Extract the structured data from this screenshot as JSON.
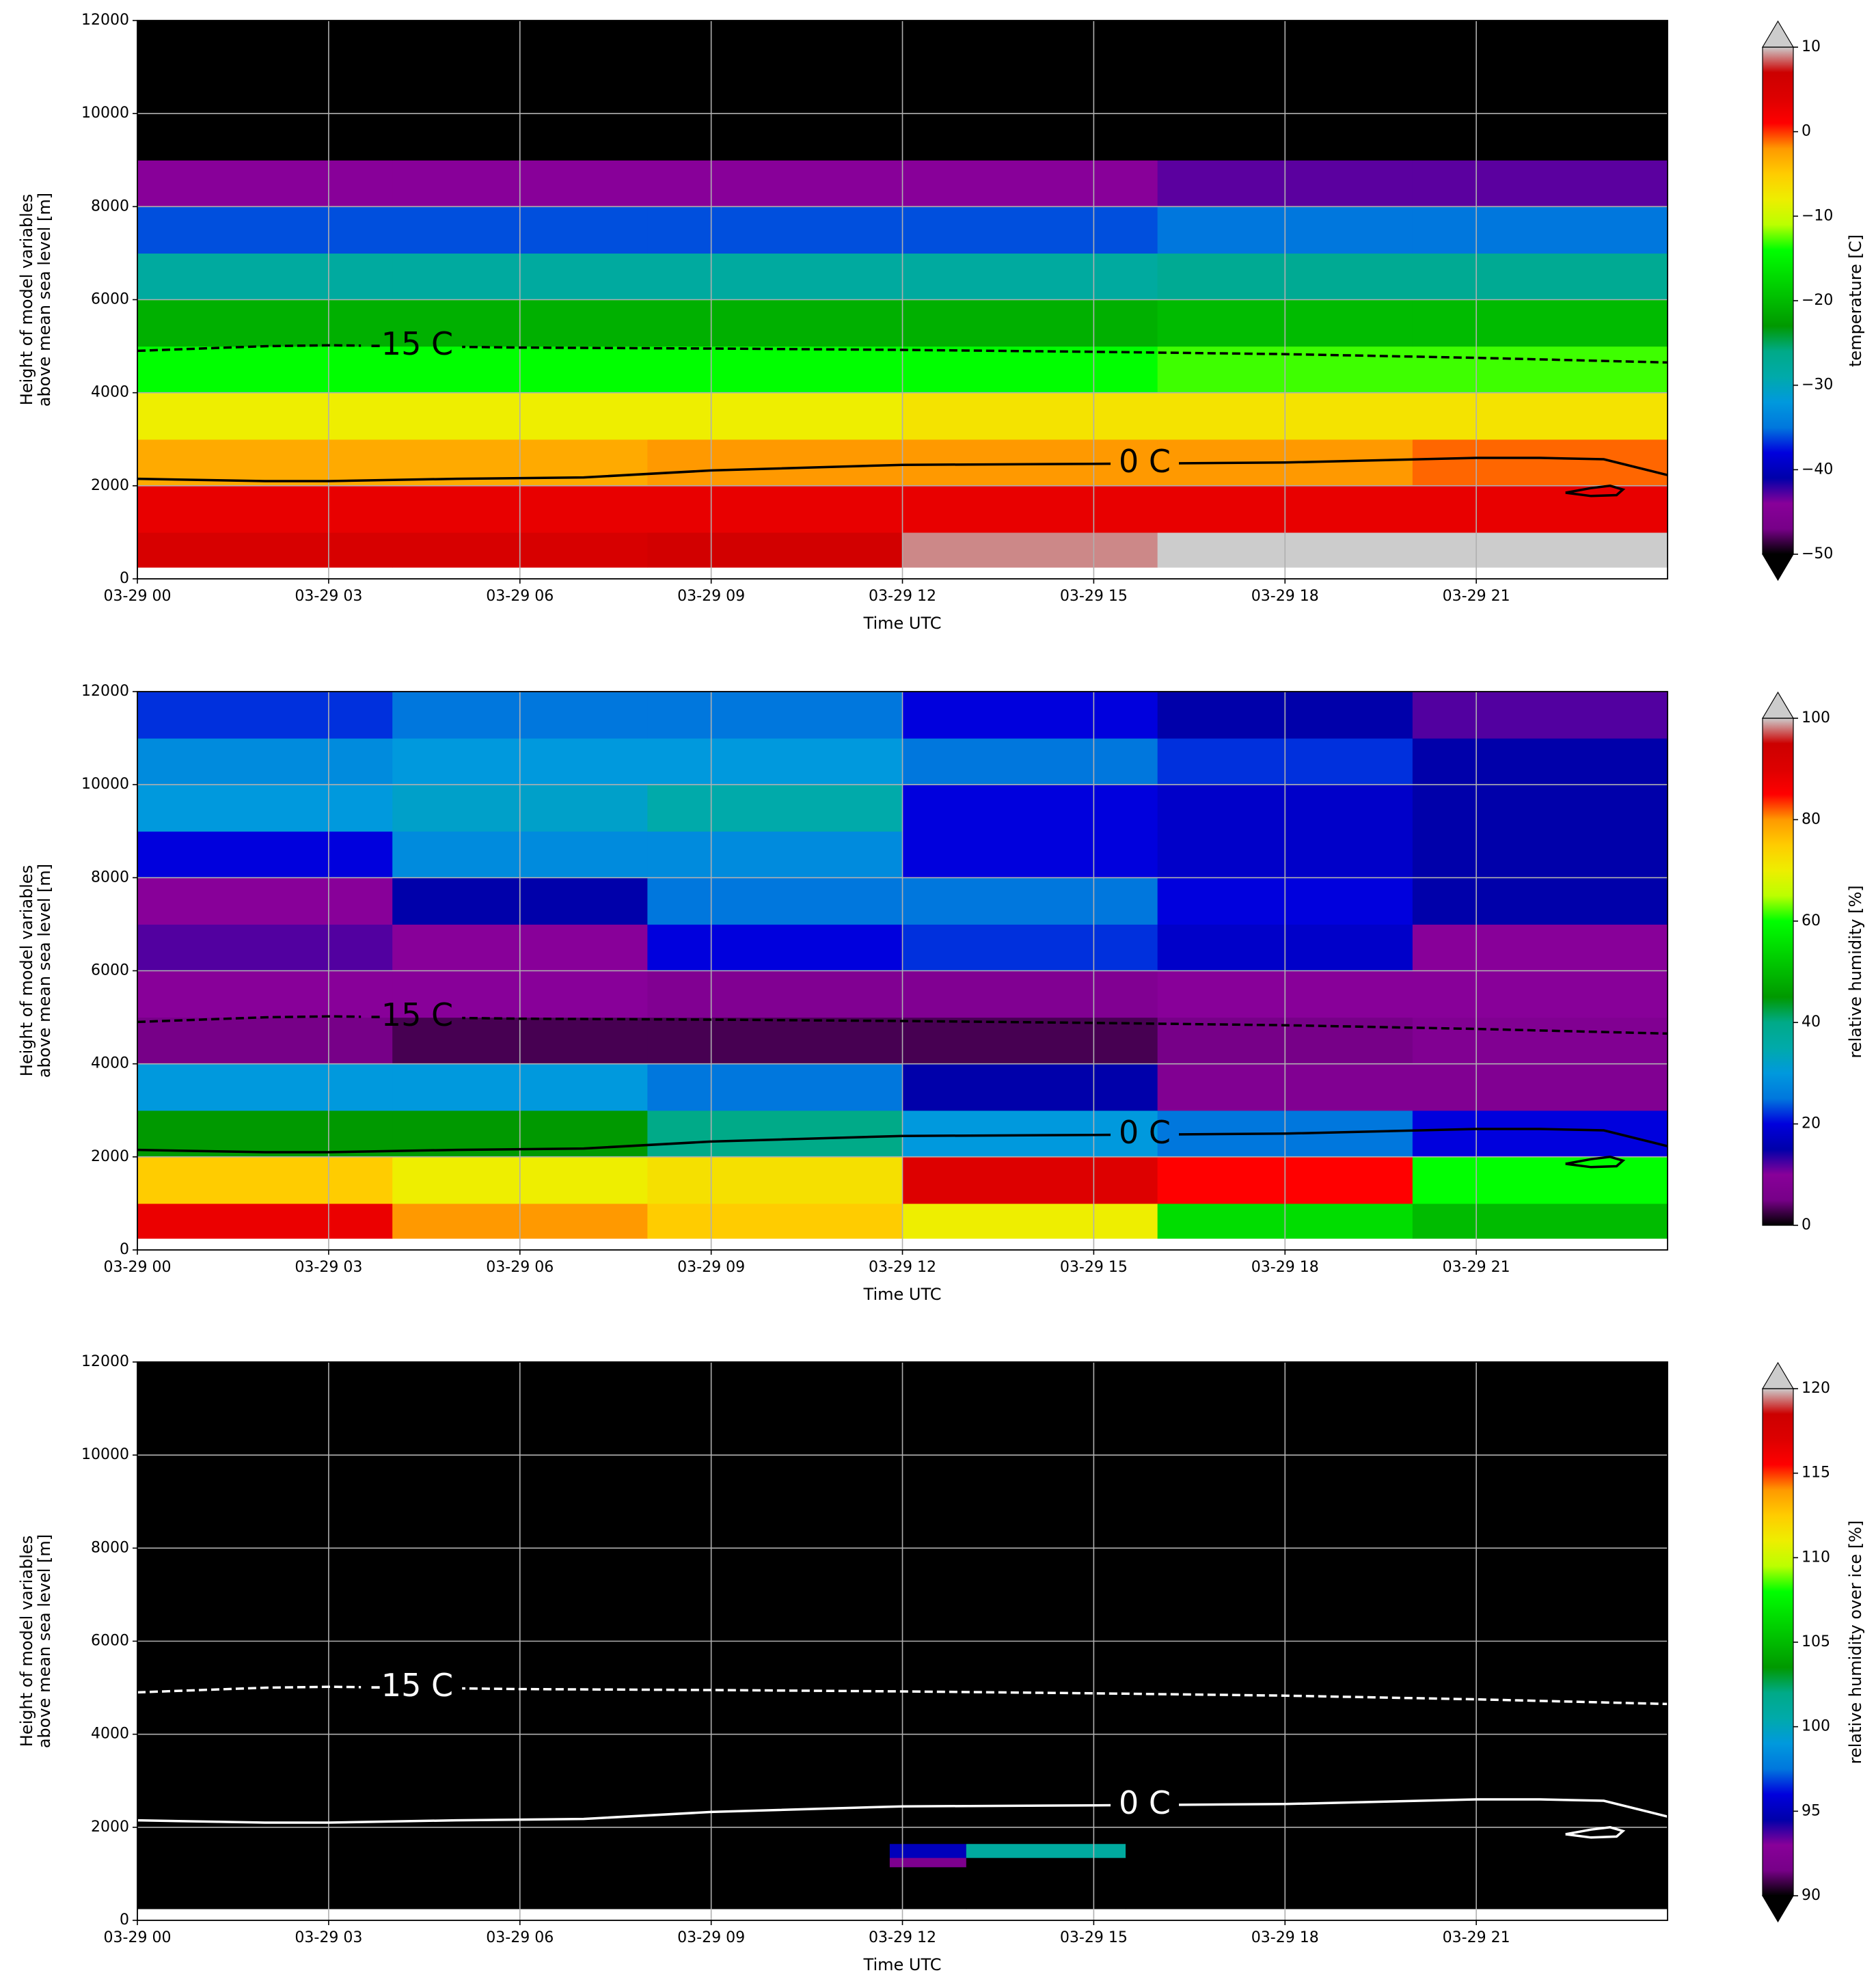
{
  "chart_data": [
    {
      "type": "heatmap",
      "colormap": "nipy_spectral",
      "xlabel": "Time UTC",
      "ylabel": [
        "Height of model variables",
        "above mean sea level [m]"
      ],
      "xlim": [
        0,
        24
      ],
      "xticks": [
        {
          "value": 0,
          "label": "03-29 00"
        },
        {
          "value": 3,
          "label": "03-29 03"
        },
        {
          "value": 6,
          "label": "03-29 06"
        },
        {
          "value": 9,
          "label": "03-29 09"
        },
        {
          "value": 12,
          "label": "03-29 12"
        },
        {
          "value": 15,
          "label": "03-29 15"
        },
        {
          "value": 18,
          "label": "03-29 18"
        },
        {
          "value": 21,
          "label": "03-29 21"
        }
      ],
      "ylim": [
        0,
        12000
      ],
      "yticks": [
        0,
        2000,
        4000,
        6000,
        8000,
        10000,
        12000
      ],
      "grid": true,
      "x_edges": [
        0,
        4,
        8,
        12,
        16,
        20,
        24
      ],
      "y_edges": [
        250,
        1000,
        2000,
        3000,
        4000,
        5000,
        6000,
        7000,
        8000,
        9000,
        10000,
        11000,
        12000
      ],
      "z": [
        [
          5,
          5,
          6,
          9,
          10,
          10
        ],
        [
          3,
          3,
          3,
          3,
          3,
          3
        ],
        [
          -3,
          -3,
          -2,
          -2,
          -2,
          -1
        ],
        [
          -8,
          -8,
          -8,
          -7,
          -7,
          -7
        ],
        [
          -14,
          -14,
          -14,
          -14,
          -13,
          -13
        ],
        [
          -21,
          -21,
          -21,
          -21,
          -20,
          -20
        ],
        [
          -28,
          -28,
          -28,
          -28,
          -27,
          -27
        ],
        [
          -36,
          -36,
          -36,
          -36,
          -35,
          -35
        ],
        [
          -44,
          -44,
          -44,
          -44,
          -43,
          -43
        ],
        [
          -52,
          -52,
          -52,
          -52,
          -52,
          -52
        ],
        [
          -55,
          -55,
          -55,
          -55,
          -55,
          -55
        ],
        [
          -57,
          -57,
          -57,
          -57,
          -57,
          -57
        ]
      ],
      "cbar_label": "temperature [C]",
      "cbar_lim": [
        -50,
        10
      ],
      "cbar_extend": "both",
      "cbar_ticks": [
        {
          "value": -50,
          "label": "−50"
        },
        {
          "value": -40,
          "label": "−40"
        },
        {
          "value": -30,
          "label": "−30"
        },
        {
          "value": -20,
          "label": "−20"
        },
        {
          "value": -10,
          "label": "−10"
        },
        0,
        10
      ],
      "contour_color": "#000000",
      "contours": [
        {
          "label": "-15 C",
          "dashed": true,
          "x": [
            0,
            2,
            3,
            6,
            9,
            12,
            15,
            18,
            21,
            24
          ],
          "y": [
            4900,
            5000,
            5020,
            4970,
            4950,
            4920,
            4880,
            4830,
            4750,
            4650
          ]
        },
        {
          "label": "0 C",
          "dashed": false,
          "x": [
            0,
            2,
            3,
            5,
            7,
            9,
            12,
            15,
            18,
            21,
            22,
            23,
            24,
            null,
            22.4,
            22.8,
            23.1,
            23.3,
            23.2,
            22.8,
            22.4
          ],
          "y": [
            2150,
            2100,
            2100,
            2150,
            2180,
            2330,
            2450,
            2470,
            2500,
            2600,
            2600,
            2570,
            2230,
            null,
            1850,
            1950,
            2000,
            1920,
            1800,
            1780,
            1850
          ]
        }
      ]
    },
    {
      "type": "heatmap",
      "colormap": "nipy_spectral",
      "xlabel": "Time UTC",
      "ylabel": [
        "Height of model variables",
        "above mean sea level [m]"
      ],
      "xlim": [
        0,
        24
      ],
      "xticks": [
        {
          "value": 0,
          "label": "03-29 00"
        },
        {
          "value": 3,
          "label": "03-29 03"
        },
        {
          "value": 6,
          "label": "03-29 06"
        },
        {
          "value": 9,
          "label": "03-29 09"
        },
        {
          "value": 12,
          "label": "03-29 12"
        },
        {
          "value": 15,
          "label": "03-29 15"
        },
        {
          "value": 18,
          "label": "03-29 18"
        },
        {
          "value": 21,
          "label": "03-29 21"
        }
      ],
      "ylim": [
        0,
        12000
      ],
      "yticks": [
        0,
        2000,
        4000,
        6000,
        8000,
        10000,
        12000
      ],
      "grid": true,
      "x_edges": [
        0,
        4,
        8,
        12,
        16,
        20,
        24
      ],
      "y_edges": [
        250,
        1000,
        2000,
        3000,
        4000,
        5000,
        6000,
        7000,
        8000,
        9000,
        10000,
        11000,
        12000
      ],
      "z": [
        [
          88,
          80,
          75,
          70,
          55,
          50
        ],
        [
          75,
          70,
          72,
          90,
          85,
          60
        ],
        [
          45,
          45,
          40,
          30,
          25,
          20
        ],
        [
          30,
          30,
          25,
          15,
          8,
          8
        ],
        [
          5,
          3,
          3,
          3,
          5,
          8
        ],
        [
          10,
          10,
          8,
          8,
          10,
          10
        ],
        [
          12,
          10,
          20,
          22,
          18,
          10
        ],
        [
          10,
          15,
          25,
          25,
          20,
          15
        ],
        [
          20,
          28,
          28,
          20,
          18,
          15
        ],
        [
          30,
          32,
          35,
          20,
          18,
          15
        ],
        [
          28,
          30,
          30,
          25,
          22,
          15
        ],
        [
          22,
          25,
          25,
          20,
          15,
          12
        ]
      ],
      "cbar_label": "relative humidity [%]",
      "cbar_lim": [
        0,
        100
      ],
      "cbar_extend": "max",
      "cbar_ticks": [
        0,
        20,
        40,
        60,
        80,
        100
      ],
      "contour_color": "#000000",
      "contours": [
        {
          "label": "-15 C",
          "dashed": true,
          "x": [
            0,
            2,
            3,
            6,
            9,
            12,
            15,
            18,
            21,
            24
          ],
          "y": [
            4900,
            5000,
            5020,
            4970,
            4950,
            4920,
            4880,
            4830,
            4750,
            4650
          ]
        },
        {
          "label": "0 C",
          "dashed": false,
          "x": [
            0,
            2,
            3,
            5,
            7,
            9,
            12,
            15,
            18,
            21,
            22,
            23,
            24,
            null,
            22.4,
            22.8,
            23.1,
            23.3,
            23.2,
            22.8,
            22.4
          ],
          "y": [
            2150,
            2100,
            2100,
            2150,
            2180,
            2330,
            2450,
            2470,
            2500,
            2600,
            2600,
            2570,
            2230,
            null,
            1850,
            1950,
            2000,
            1920,
            1800,
            1780,
            1850
          ]
        }
      ]
    },
    {
      "type": "heatmap",
      "colormap": "nipy_spectral",
      "xlabel": "Time UTC",
      "ylabel": [
        "Height of model variables",
        "above mean sea level [m]"
      ],
      "xlim": [
        0,
        24
      ],
      "xticks": [
        {
          "value": 0,
          "label": "03-29 00"
        },
        {
          "value": 3,
          "label": "03-29 03"
        },
        {
          "value": 6,
          "label": "03-29 06"
        },
        {
          "value": 9,
          "label": "03-29 09"
        },
        {
          "value": 12,
          "label": "03-29 12"
        },
        {
          "value": 15,
          "label": "03-29 15"
        },
        {
          "value": 18,
          "label": "03-29 18"
        },
        {
          "value": 21,
          "label": "03-29 21"
        }
      ],
      "ylim": [
        0,
        12000
      ],
      "yticks": [
        0,
        2000,
        4000,
        6000,
        8000,
        10000,
        12000
      ],
      "grid": true,
      "x_edges": [
        0,
        11.8,
        13,
        15.5,
        24
      ],
      "y_edges": [
        250,
        1150,
        1350,
        1650,
        12000
      ],
      "z": [
        [
          80,
          80,
          80,
          80
        ],
        [
          80,
          92,
          80,
          80
        ],
        [
          80,
          95,
          101,
          80
        ],
        [
          80,
          80,
          80,
          80
        ]
      ],
      "cbar_label": "relative humidity over ice [%]",
      "cbar_lim": [
        90,
        120
      ],
      "cbar_extend": "both",
      "cbar_ticks": [
        90,
        95,
        100,
        105,
        110,
        115,
        120
      ],
      "contour_color": "#ffffff",
      "contours": [
        {
          "label": "-15 C",
          "dashed": true,
          "x": [
            0,
            2,
            3,
            6,
            9,
            12,
            15,
            18,
            21,
            24
          ],
          "y": [
            4900,
            5000,
            5020,
            4970,
            4950,
            4920,
            4880,
            4830,
            4750,
            4650
          ]
        },
        {
          "label": "0 C",
          "dashed": false,
          "x": [
            0,
            2,
            3,
            5,
            7,
            9,
            12,
            15,
            18,
            21,
            22,
            23,
            24,
            null,
            22.4,
            22.8,
            23.1,
            23.3,
            23.2,
            22.8,
            22.4
          ],
          "y": [
            2150,
            2100,
            2100,
            2150,
            2180,
            2330,
            2450,
            2470,
            2500,
            2600,
            2600,
            2570,
            2230,
            null,
            1850,
            1950,
            2000,
            1920,
            1800,
            1780,
            1850
          ]
        }
      ]
    }
  ]
}
